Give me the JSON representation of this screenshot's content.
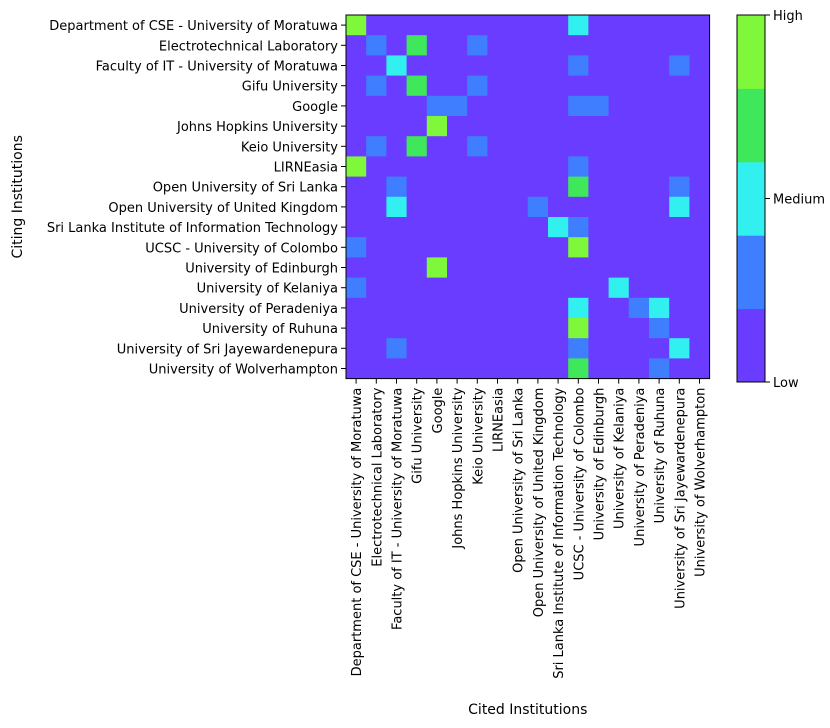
{
  "chart_data": {
    "type": "heatmap",
    "xlabel": "Cited Institutions",
    "ylabel": "Citing Institutions",
    "rows": [
      "Department of CSE - University of Moratuwa",
      "Electrotechnical Laboratory",
      "Faculty of IT - University of Moratuwa",
      "Gifu University",
      "Google",
      "Johns Hopkins University",
      "Keio University",
      "LIRNEasia",
      "Open University of Sri Lanka",
      "Open University of United Kingdom",
      "Sri Lanka Institute of Information Technology",
      "UCSC - University of Colombo",
      "University of Edinburgh",
      "University of Kelaniya",
      "University of Peradeniya",
      "University of Ruhuna",
      "University of Sri Jayewardenepura",
      "University of Wolverhampton"
    ],
    "columns": [
      "Department of CSE - University of Moratuwa",
      "Electrotechnical Laboratory",
      "Faculty of IT - University of Moratuwa",
      "Gifu University",
      "Google",
      "Johns Hopkins University",
      "Keio University",
      "LIRNEasia",
      "Open University of Sri Lanka",
      "Open University of United Kingdom",
      "Sri Lanka Institute of Information Technology",
      "UCSC - University of Colombo",
      "University of Edinburgh",
      "University of Kelaniya",
      "University of Peradeniya",
      "University of Ruhuna",
      "University of Sri Jayewardenepura",
      "University of Wolverhampton"
    ],
    "values": [
      [
        4,
        0,
        0,
        0,
        0,
        0,
        0,
        0,
        0,
        0,
        0,
        2,
        0,
        0,
        0,
        0,
        0,
        0
      ],
      [
        0,
        1,
        0,
        3,
        0,
        0,
        1,
        0,
        0,
        0,
        0,
        0,
        0,
        0,
        0,
        0,
        0,
        0
      ],
      [
        0,
        0,
        2,
        0,
        0,
        0,
        0,
        0,
        0,
        0,
        0,
        1,
        0,
        0,
        0,
        0,
        1,
        0
      ],
      [
        0,
        1,
        0,
        3,
        0,
        0,
        1,
        0,
        0,
        0,
        0,
        0,
        0,
        0,
        0,
        0,
        0,
        0
      ],
      [
        0,
        0,
        0,
        0,
        1,
        1,
        0,
        0,
        0,
        0,
        0,
        1,
        1,
        0,
        0,
        0,
        0,
        0
      ],
      [
        0,
        0,
        0,
        0,
        4,
        0,
        0,
        0,
        0,
        0,
        0,
        0,
        0,
        0,
        0,
        0,
        0,
        0
      ],
      [
        0,
        1,
        0,
        3,
        0,
        0,
        1,
        0,
        0,
        0,
        0,
        0,
        0,
        0,
        0,
        0,
        0,
        0
      ],
      [
        4,
        0,
        0,
        0,
        0,
        0,
        0,
        0,
        0,
        0,
        0,
        1,
        0,
        0,
        0,
        0,
        0,
        0
      ],
      [
        0,
        0,
        1,
        0,
        0,
        0,
        0,
        0,
        0,
        0,
        0,
        3,
        0,
        0,
        0,
        0,
        1,
        0
      ],
      [
        0,
        0,
        2,
        0,
        0,
        0,
        0,
        0,
        0,
        1,
        0,
        0,
        0,
        0,
        0,
        0,
        2,
        0
      ],
      [
        0,
        0,
        0,
        0,
        0,
        0,
        0,
        0,
        0,
        0,
        2,
        1,
        0,
        0,
        0,
        0,
        0,
        0
      ],
      [
        1,
        0,
        0,
        0,
        0,
        0,
        0,
        0,
        0,
        0,
        0,
        4,
        0,
        0,
        0,
        0,
        0,
        0
      ],
      [
        0,
        0,
        0,
        0,
        4,
        0,
        0,
        0,
        0,
        0,
        0,
        0,
        0,
        0,
        0,
        0,
        0,
        0
      ],
      [
        1,
        0,
        0,
        0,
        0,
        0,
        0,
        0,
        0,
        0,
        0,
        0,
        0,
        2,
        0,
        0,
        0,
        0
      ],
      [
        0,
        0,
        0,
        0,
        0,
        0,
        0,
        0,
        0,
        0,
        0,
        2,
        0,
        0,
        1,
        2,
        0,
        0
      ],
      [
        0,
        0,
        0,
        0,
        0,
        0,
        0,
        0,
        0,
        0,
        0,
        4,
        0,
        0,
        0,
        1,
        0,
        0
      ],
      [
        0,
        0,
        1,
        0,
        0,
        0,
        0,
        0,
        0,
        0,
        0,
        1,
        0,
        0,
        0,
        0,
        2,
        0
      ],
      [
        0,
        0,
        0,
        0,
        0,
        0,
        0,
        0,
        0,
        0,
        0,
        3,
        0,
        0,
        0,
        1,
        0,
        0
      ]
    ],
    "color_levels": [
      "#6a3cff",
      "#3f7fff",
      "#33f0f0",
      "#3fe85a",
      "#7ff73a"
    ],
    "colorbar": {
      "tick_labels": [
        "Low",
        "Medium",
        "High"
      ],
      "tick_positions": [
        0,
        0.5,
        1
      ]
    },
    "grid": false
  }
}
